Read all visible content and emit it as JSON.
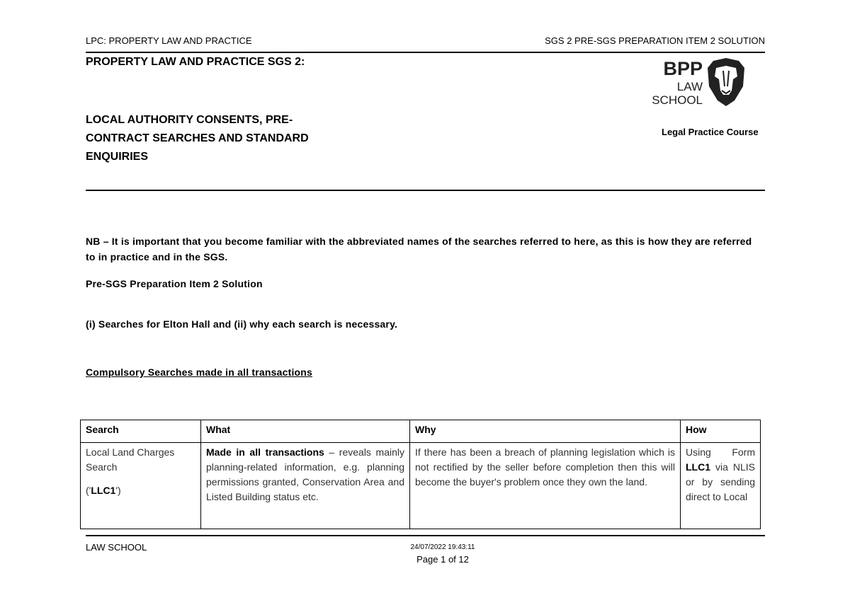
{
  "header": {
    "left": "LPC: PROPERTY LAW AND PRACTICE",
    "right": "SGS 2 PRE-SGS PREPARATION ITEM 2 SOLUTION"
  },
  "title": {
    "line1": "PROPERTY LAW AND PRACTICE SGS 2:",
    "line2": "LOCAL AUTHORITY CONSENTS, PRE-",
    "line3": "CONTRACT SEARCHES AND STANDARD",
    "line4": "ENQUIRIES"
  },
  "logo": {
    "brand": "BPP",
    "line1": "LAW",
    "line2": "SCHOOL",
    "course": "Legal Practice Course"
  },
  "body": {
    "nb": "NB – It is important that you become familiar with the abbreviated names of the searches referred to here, as this is how they are referred to in practice and in the SGS.",
    "subtitle": "Pre-SGS Preparation Item 2 Solution",
    "question": "(i) Searches for Elton Hall and (ii) why each search is necessary.",
    "section": "Compulsory Searches made in all transactions"
  },
  "table": {
    "headers": [
      "Search",
      "What",
      "Why",
      "How"
    ],
    "row": {
      "search_a": "Local Land Charges Search",
      "search_b_pre": "('",
      "search_b_bold": "LLC1",
      "search_b_post": "')",
      "what_bold": "Made in all transactions",
      "what_rest": " – reveals mainly planning-related information, e.g. planning permissions granted, Conservation Area and Listed Building status etc.",
      "why": "If there has been a breach of planning legislation which is not rectified by the seller before completion then this will become the buyer's problem once they own the land.",
      "how_pre": "Using Form ",
      "how_bold": "LLC1",
      "how_rest": " via NLIS or by sending direct to Local"
    }
  },
  "footer": {
    "left": "LAW SCHOOL",
    "timestamp": "24/07/2022 19:43:11",
    "page": "Page 1 of 12"
  }
}
